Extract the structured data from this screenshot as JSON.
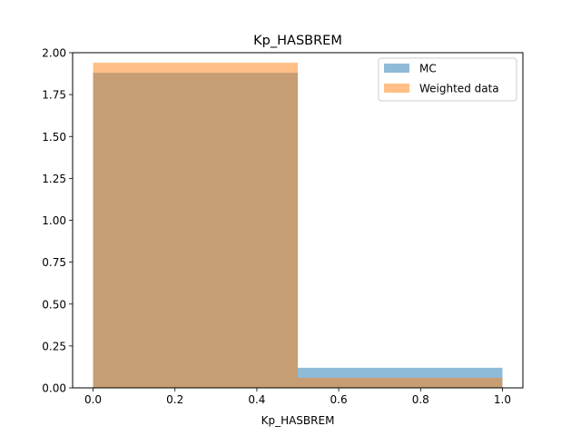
{
  "chart_data": {
    "type": "bar",
    "title": "Kp_HASBREM",
    "xlabel": "Kp_HASBREM",
    "ylabel": "",
    "xlim": [
      -0.05,
      1.05
    ],
    "ylim": [
      0,
      2.0
    ],
    "bin_edges": [
      0.0,
      0.5,
      1.0
    ],
    "x_ticks": [
      "0.0",
      "0.2",
      "0.4",
      "0.6",
      "0.8",
      "1.0"
    ],
    "y_ticks": [
      "0.00",
      "0.25",
      "0.50",
      "0.75",
      "1.00",
      "1.25",
      "1.50",
      "1.75",
      "2.00"
    ],
    "legend_position": "top-right",
    "grid": false,
    "series": [
      {
        "name": "MC",
        "values": [
          1.88,
          0.12
        ],
        "color": "#1f77b4",
        "alpha": 0.5
      },
      {
        "name": "Weighted data",
        "values": [
          1.94,
          0.06
        ],
        "color": "#ff7f0e",
        "alpha": 0.5
      }
    ]
  }
}
